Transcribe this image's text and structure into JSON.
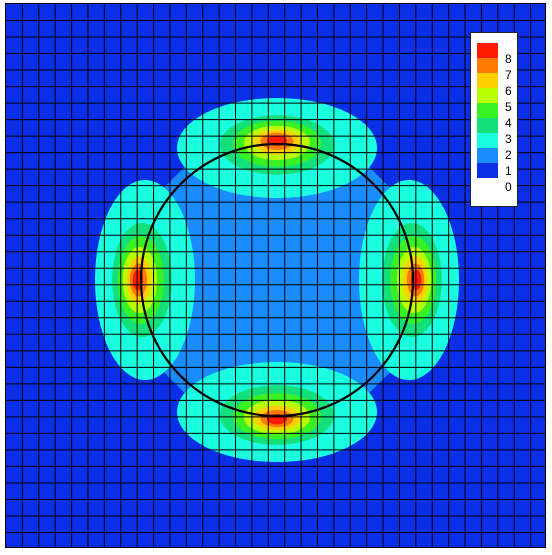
{
  "chart_data": {
    "type": "heatmap",
    "title": "",
    "xlabel": "",
    "ylabel": "",
    "grid": true,
    "grid_cells": [
      33,
      33
    ],
    "background_level": 0,
    "interior_level": 1,
    "hotspots": [
      {
        "position": "top",
        "peak_level": 8
      },
      {
        "position": "bottom",
        "peak_level": 8
      },
      {
        "position": "left",
        "peak_level": 8
      },
      {
        "position": "right",
        "peak_level": 8
      }
    ],
    "circle_outline": true,
    "legend": {
      "placement": "top-right",
      "levels": [
        {
          "label": "8",
          "color": "#ff1a00"
        },
        {
          "label": "7",
          "color": "#ff7a00"
        },
        {
          "label": "6",
          "color": "#ffd000"
        },
        {
          "label": "5",
          "color": "#b8ff00"
        },
        {
          "label": "4",
          "color": "#39f022"
        },
        {
          "label": "3",
          "color": "#13e07a"
        },
        {
          "label": "2",
          "color": "#19ffe0"
        },
        {
          "label": "1",
          "color": "#1a8cff"
        },
        {
          "label": "0",
          "color": "#0a2fe6"
        }
      ]
    }
  }
}
